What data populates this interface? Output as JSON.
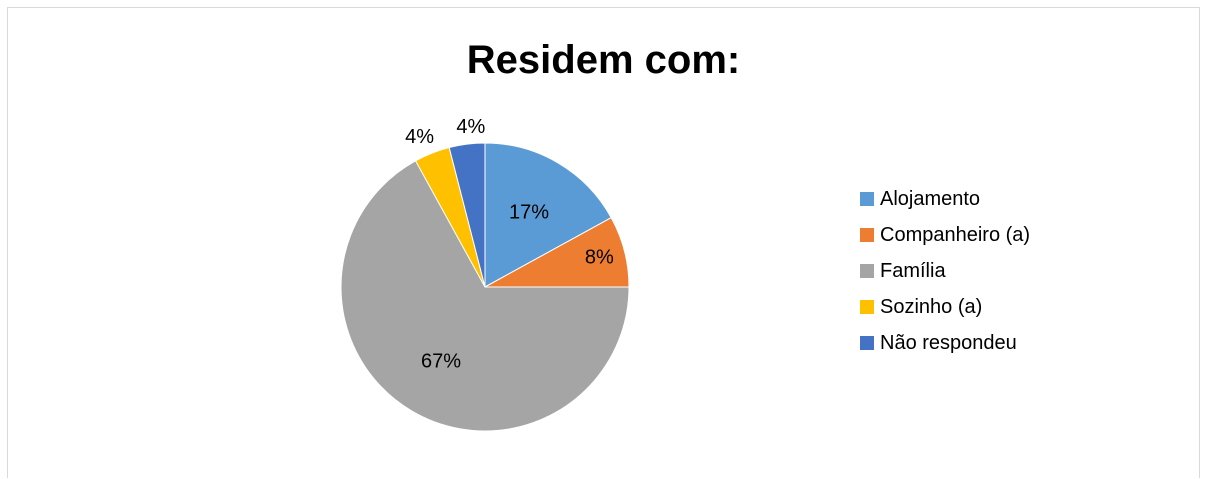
{
  "chart_data": {
    "type": "pie",
    "title": "Residem com:",
    "categories": [
      "Alojamento",
      "Companheiro (a)",
      "Família",
      "Sozinho (a)",
      "Não respondeu"
    ],
    "values": [
      17,
      8,
      67,
      4,
      4
    ],
    "labels": [
      "17%",
      "8%",
      "67%",
      "4%",
      "4%"
    ],
    "colors": [
      "#5b9bd5",
      "#ed7d31",
      "#a5a5a5",
      "#ffc000",
      "#4472c4"
    ],
    "legend_position": "right"
  }
}
